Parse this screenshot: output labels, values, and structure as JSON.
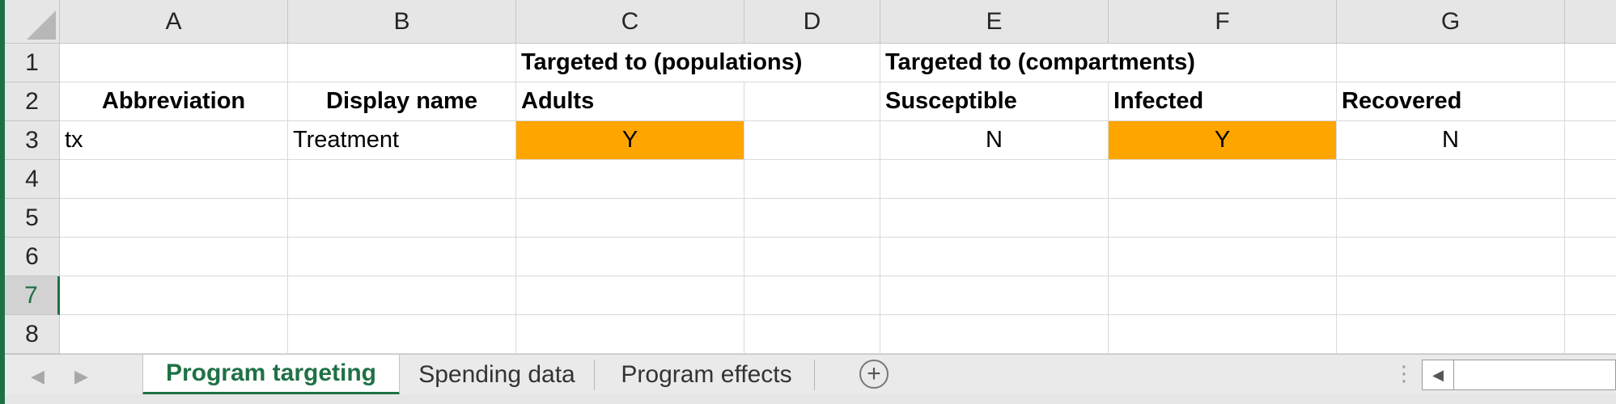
{
  "columns": [
    "A",
    "B",
    "C",
    "D",
    "E",
    "F",
    "G"
  ],
  "rows": [
    "1",
    "2",
    "3",
    "4",
    "5",
    "6",
    "7",
    "8"
  ],
  "cells": {
    "c1": "Targeted to (populations)",
    "e1": "Targeted to (compartments)",
    "a2": "Abbreviation",
    "b2": "Display name",
    "c2": "Adults",
    "e2": "Susceptible",
    "f2": "Infected",
    "g2": "Recovered",
    "a3": "tx",
    "b3": "Treatment",
    "c3": "Y",
    "e3": "N",
    "f3": "Y",
    "g3": "N"
  },
  "highlight_color": "#FFA500",
  "accent_color": "#1F7145",
  "sheet_tabs": [
    "Program targeting",
    "Spending data",
    "Program effects"
  ],
  "active_tab": "Program targeting",
  "icons": {
    "prev": "triangle-left-icon",
    "next": "triangle-right-icon",
    "add": "plus-circle-icon"
  }
}
